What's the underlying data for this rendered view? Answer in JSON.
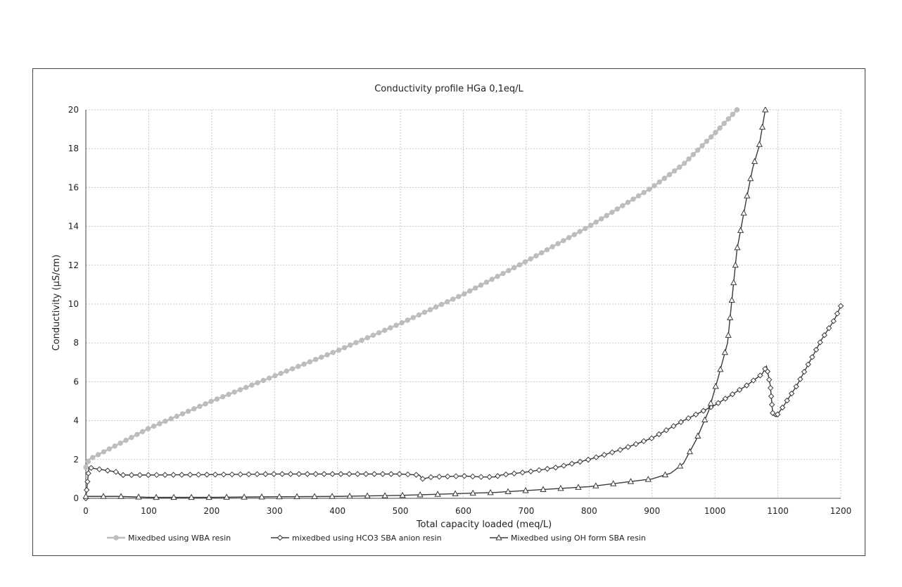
{
  "chart_data": {
    "type": "line",
    "title": "Conductivity profile HGa 0,1eq/L",
    "xlabel": "Total capacity loaded (meq/L)",
    "ylabel": "Conductivity (µS/cm)",
    "xlim": [
      0,
      1200
    ],
    "ylim": [
      0,
      20
    ],
    "xticks": [
      0,
      100,
      200,
      300,
      400,
      500,
      600,
      700,
      800,
      900,
      1000,
      1100,
      1200
    ],
    "yticks": [
      0,
      2,
      4,
      6,
      8,
      10,
      12,
      14,
      16,
      18,
      20
    ],
    "grid": true,
    "legend_position": "bottom",
    "series": [
      {
        "name": "Mixedbed using WBA resin",
        "color": "#bdbdbd",
        "marker": "circle",
        "x": [
          0,
          5,
          100,
          200,
          300,
          400,
          500,
          600,
          700,
          800,
          900,
          950,
          1000,
          1035
        ],
        "y": [
          1.6,
          2.0,
          3.6,
          5.0,
          6.3,
          7.6,
          9.0,
          10.5,
          12.2,
          14.0,
          16.0,
          17.2,
          18.8,
          20.0
        ]
      },
      {
        "name": "mixedbed using HCO3 SBA anion resin",
        "color": "#3a3a3a",
        "marker": "diamond",
        "x": [
          0,
          5,
          10,
          20,
          30,
          40,
          50,
          55,
          100,
          200,
          300,
          400,
          500,
          530,
          535,
          550,
          600,
          630,
          650,
          660,
          700,
          750,
          800,
          850,
          900,
          950,
          1000,
          1050,
          1075,
          1082,
          1088,
          1092,
          1097,
          1110,
          1130,
          1150,
          1170,
          1190,
          1200
        ],
        "y": [
          0,
          1.6,
          1.55,
          1.5,
          1.45,
          1.4,
          1.35,
          1.2,
          1.2,
          1.22,
          1.25,
          1.25,
          1.25,
          1.2,
          1.0,
          1.1,
          1.15,
          1.1,
          1.1,
          1.2,
          1.35,
          1.6,
          2.0,
          2.5,
          3.1,
          4.0,
          4.8,
          5.8,
          6.4,
          6.8,
          5.8,
          4.3,
          4.2,
          4.8,
          5.8,
          7.0,
          8.2,
          9.2,
          9.9
        ]
      },
      {
        "name": "Mixedbed using OH form SBA resin",
        "color": "#3a3a3a",
        "marker": "triangle",
        "x": [
          0,
          50,
          100,
          200,
          300,
          400,
          500,
          600,
          650,
          700,
          750,
          800,
          850,
          900,
          930,
          950,
          970,
          990,
          1005,
          1020,
          1035,
          1050,
          1060,
          1070,
          1080
        ],
        "y": [
          0.1,
          0.1,
          0.05,
          0.05,
          0.08,
          0.1,
          0.15,
          0.25,
          0.3,
          0.4,
          0.5,
          0.6,
          0.8,
          1.0,
          1.3,
          1.8,
          3.0,
          4.5,
          6.2,
          8.0,
          12.8,
          15.4,
          17.0,
          18.1,
          20.0
        ]
      }
    ]
  }
}
